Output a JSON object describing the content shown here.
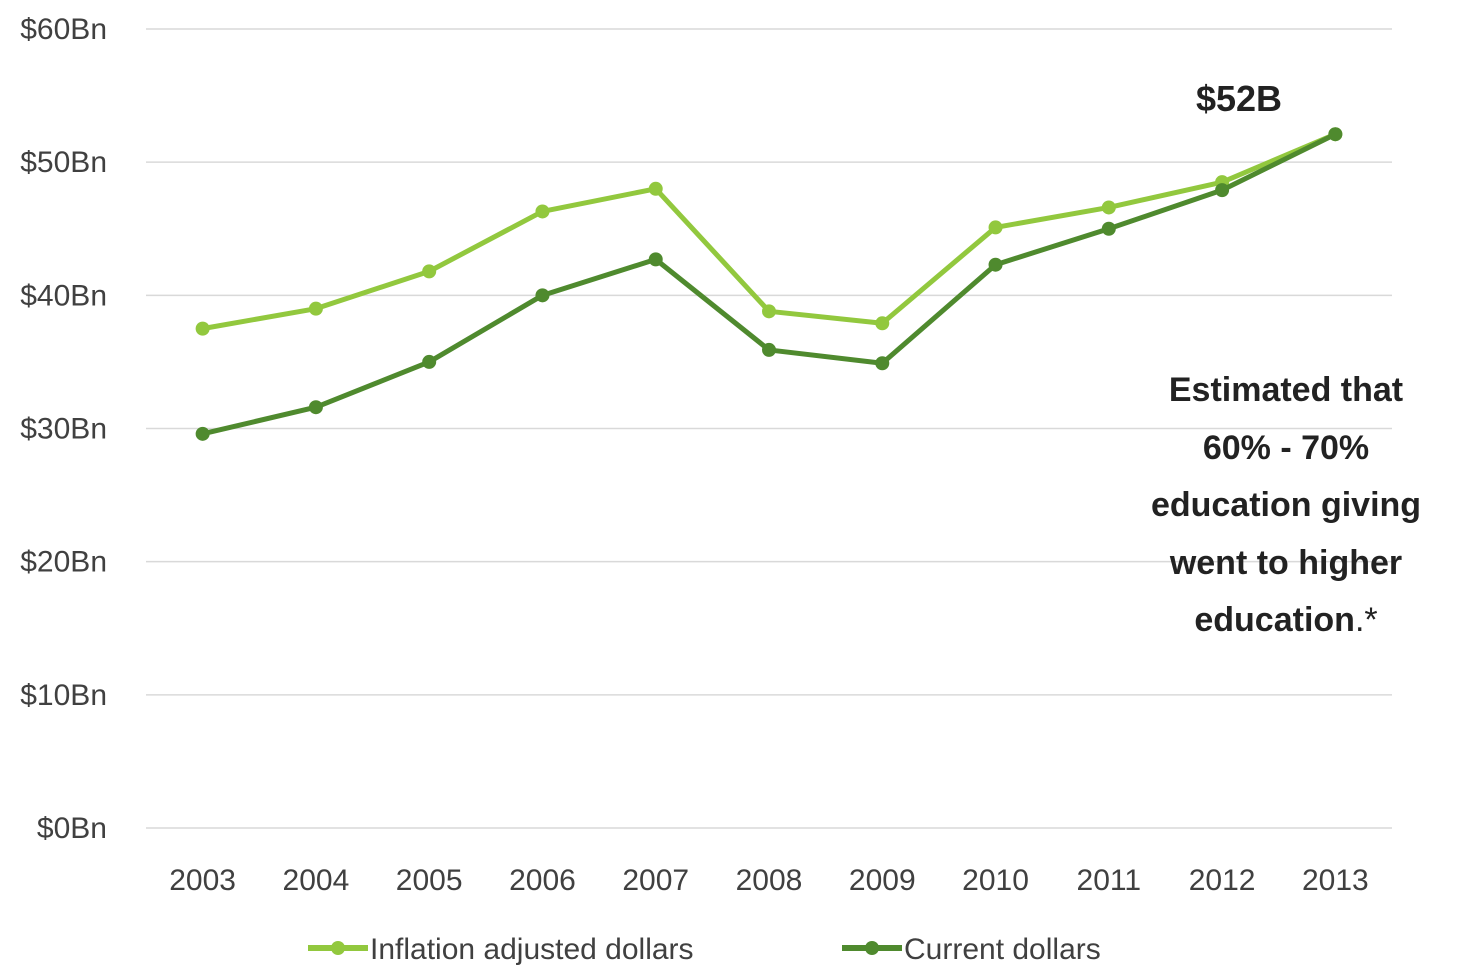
{
  "chart_data": {
    "type": "line",
    "title": "",
    "xlabel": "",
    "ylabel": "",
    "categories": [
      "2003",
      "2004",
      "2005",
      "2006",
      "2007",
      "2008",
      "2009",
      "2010",
      "2011",
      "2012",
      "2013"
    ],
    "ylim": [
      0,
      60
    ],
    "y_ticks": [
      0,
      10,
      20,
      30,
      40,
      50,
      60
    ],
    "y_tick_labels": [
      "$0Bn",
      "$10Bn",
      "$20Bn",
      "$30Bn",
      "$40Bn",
      "$50Bn",
      "$60Bn"
    ],
    "grid": "horizontal",
    "legend_position": "bottom",
    "series": [
      {
        "name": "Inflation adjusted dollars",
        "color": "#92c83e",
        "values": [
          37.5,
          39.0,
          41.8,
          46.3,
          48.0,
          38.8,
          37.9,
          45.1,
          46.6,
          48.5,
          52.1
        ]
      },
      {
        "name": "Current dollars",
        "color": "#4f8a2e",
        "values": [
          29.6,
          31.6,
          35.0,
          40.0,
          42.7,
          35.9,
          34.9,
          42.3,
          45.0,
          47.9,
          52.1
        ]
      }
    ],
    "annotations": {
      "peak_label": "$52B",
      "note_lines": [
        "Estimated that",
        "60% - 70%",
        "education giving",
        "went to higher"
      ],
      "note_last_bold": "education",
      "note_last_suffix": ".*"
    }
  }
}
